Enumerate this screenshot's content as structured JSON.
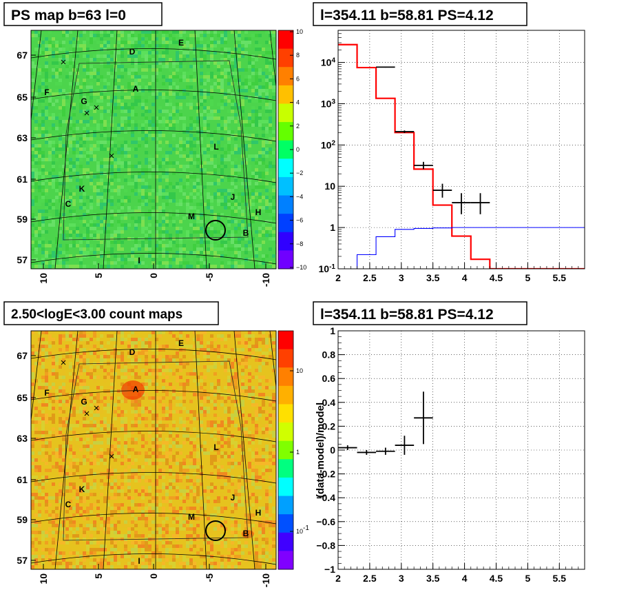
{
  "panels": {
    "ps_map": {
      "title": "PS map b=63 l=0",
      "colorbar_ticks": [
        "10",
        "8",
        "6",
        "4",
        "2",
        "0",
        "−2",
        "−4",
        "−6",
        "−8",
        "−10"
      ],
      "colorbar_colors": [
        "#ff0000",
        "#ff4000",
        "#ff8000",
        "#ffc000",
        "#c8ff00",
        "#64ff00",
        "#00ff64",
        "#00ffff",
        "#00c0ff",
        "#0080ff",
        "#0040ff",
        "#3000ff",
        "#7000ff"
      ],
      "map_color": "#4cd44c"
    },
    "count_map": {
      "title": "2.50<logE<3.00 count maps",
      "colorbar_ticks": [
        "10",
        "1",
        "10^-1"
      ],
      "colorbar_colors": [
        "#ff0000",
        "#ff4000",
        "#ff8000",
        "#ffb000",
        "#ffe000",
        "#d0ff00",
        "#80ff00",
        "#00ff80",
        "#00ffff",
        "#00a0ff",
        "#0050ff",
        "#4000ff",
        "#8000ff"
      ],
      "map_color": "#e6c31e"
    }
  },
  "sky": {
    "y_ticks": [
      "67",
      "65",
      "63",
      "61",
      "59",
      "57"
    ],
    "x_ticks": [
      "10",
      "5",
      "0",
      "-5",
      "-10"
    ],
    "sources": [
      "D",
      "E",
      "F",
      "A",
      "G",
      "L",
      "K",
      "C",
      "J",
      "M",
      "H",
      "B",
      "I"
    ]
  },
  "chart_data": [
    {
      "type": "line",
      "title": "l=354.11 b=58.81 PS=4.12",
      "xlabel": "",
      "ylabel": "",
      "xlim": [
        2,
        5.9
      ],
      "ylim": [
        0.1,
        60000
      ],
      "y_scale": "log",
      "grid": true,
      "x_ticks": [
        "2",
        "2.5",
        "3",
        "3.5",
        "4",
        "4.5",
        "5",
        "5.5"
      ],
      "y_ticks": [
        "10^4",
        "10^3",
        "10^2",
        "10",
        "1",
        "10^-1"
      ],
      "bin_edges": [
        2,
        2.3,
        2.6,
        2.9,
        3.2,
        3.5,
        3.8,
        4.1,
        4.4,
        4.7,
        5.0,
        5.3,
        5.6,
        5.9
      ],
      "series": [
        {
          "color": "#ff0000",
          "values": [
            27000,
            7500,
            1350,
            200,
            26,
            3.5,
            0.62,
            0.17,
            0.1,
            0.1,
            0.1,
            0.1,
            0.1
          ]
        },
        {
          "color": "#0000ff",
          "values": [
            0.02,
            0.22,
            0.6,
            0.9,
            0.95,
            0.98,
            1,
            1,
            1,
            1,
            1,
            1,
            1
          ]
        }
      ],
      "data_points": [
        {
          "x": 2.75,
          "y": 7700,
          "xerr": 0.15,
          "ylo": 7500,
          "yhi": 7900
        },
        {
          "x": 3.05,
          "y": 210,
          "xerr": 0.15,
          "ylo": 195,
          "yhi": 225
        },
        {
          "x": 3.35,
          "y": 32,
          "xerr": 0.15,
          "ylo": 26,
          "yhi": 39
        },
        {
          "x": 3.65,
          "y": 8,
          "xerr": 0.15,
          "ylo": 5.3,
          "yhi": 11.5
        },
        {
          "x": 3.95,
          "y": 4,
          "xerr": 0.15,
          "ylo": 2.1,
          "yhi": 6.8
        },
        {
          "x": 4.25,
          "y": 4,
          "xerr": 0.15,
          "ylo": 2.1,
          "yhi": 6.8
        }
      ]
    },
    {
      "type": "scatter",
      "title": "l=354.11 b=58.81 PS=4.12",
      "xlabel": "",
      "ylabel": "(data-model)/model",
      "xlim": [
        2,
        5.9
      ],
      "ylim": [
        -1,
        1
      ],
      "grid": true,
      "x_ticks": [
        "2",
        "2.5",
        "3",
        "3.5",
        "4",
        "4.5",
        "5",
        "5.5"
      ],
      "y_ticks": [
        "1",
        "0.8",
        "0.6",
        "0.4",
        "0.2",
        "0",
        "−0.2",
        "−0.4",
        "−0.6",
        "−0.8",
        "−1"
      ],
      "data_points": [
        {
          "x": 2.15,
          "y": 0.02,
          "xerr": 0.15,
          "yerr": 0.02
        },
        {
          "x": 2.45,
          "y": -0.02,
          "xerr": 0.15,
          "yerr": 0.02
        },
        {
          "x": 2.75,
          "y": -0.01,
          "xerr": 0.15,
          "yerr": 0.03
        },
        {
          "x": 3.05,
          "y": 0.04,
          "xerr": 0.15,
          "yerr": 0.08
        },
        {
          "x": 3.35,
          "y": 0.27,
          "xerr": 0.15,
          "yerr": 0.22
        }
      ]
    }
  ]
}
